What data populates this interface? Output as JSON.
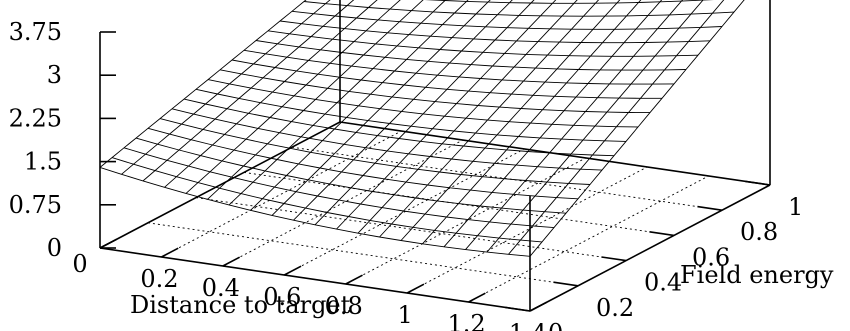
{
  "chart_data": {
    "type": "surface",
    "title": "",
    "xlabel": "Distance to target",
    "ylabel": "Field energy",
    "zlabel": "",
    "xlim": [
      0,
      1.4
    ],
    "ylim": [
      0,
      1
    ],
    "zlim": [
      0,
      3.75
    ],
    "x_ticks": [
      "0",
      "0.2",
      "0.4",
      "0.6",
      "0.8",
      "1",
      "1.2",
      "1.4"
    ],
    "y_ticks": [
      "0",
      "0.2",
      "0.4",
      "0.6",
      "0.8",
      "1"
    ],
    "z_ticks": [
      "0",
      "0.75",
      "1.5",
      "2.25",
      "3",
      "3.75"
    ],
    "grid": true,
    "surface": {
      "x_samples": 20,
      "y_samples": 20,
      "corner_values": {
        "x0_y0": 1.4,
        "x1.4_y0": 0.95,
        "x0_y1": 2.6,
        "x1.4_y1": 3.75
      }
    }
  }
}
